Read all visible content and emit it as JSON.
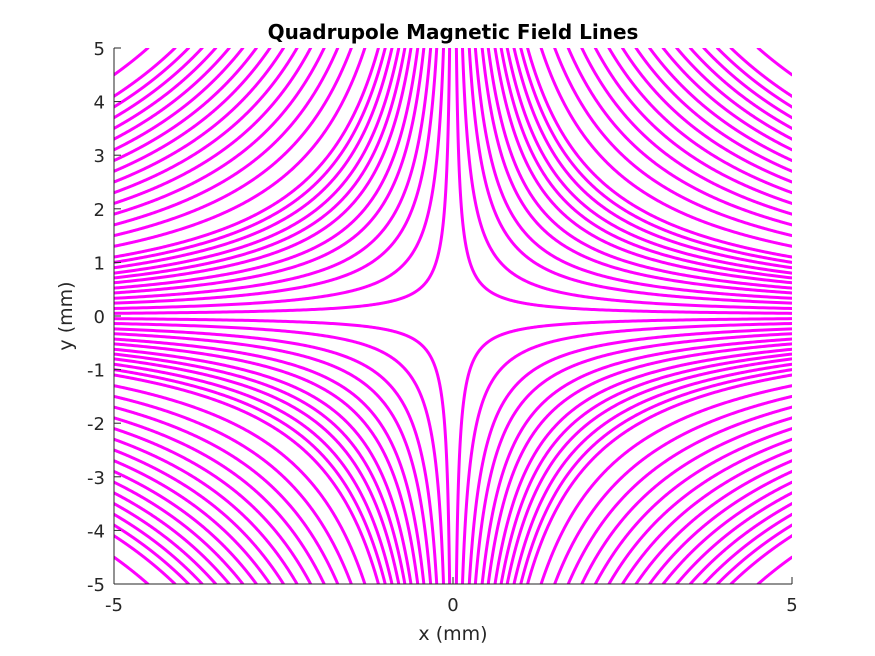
{
  "chart_data": {
    "type": "line",
    "title": "Quadrupole Magnetic Field Lines",
    "xlabel": "x (mm)",
    "ylabel": "y (mm)",
    "xlim": [
      -5,
      5
    ],
    "ylim": [
      -5,
      5
    ],
    "xticks": [
      -5,
      0,
      5
    ],
    "yticks": [
      -5,
      -4,
      -3,
      -2,
      -1,
      0,
      1,
      2,
      3,
      4,
      5
    ],
    "grid": false,
    "line_color": "#ff00ff",
    "field_line_equation": "x*y = c",
    "contour_levels_c": [
      0.25,
      0.7,
      1.2,
      1.65,
      2.15,
      2.6,
      3.1,
      3.55,
      4.0,
      4.5,
      5.0,
      5.5,
      6.5,
      7.5,
      8.5,
      9.5,
      10.5,
      11.5,
      12.5,
      13.5,
      14.5,
      15.5,
      16.5,
      17.5,
      18.5,
      19.5,
      20.5,
      22.5
    ]
  }
}
